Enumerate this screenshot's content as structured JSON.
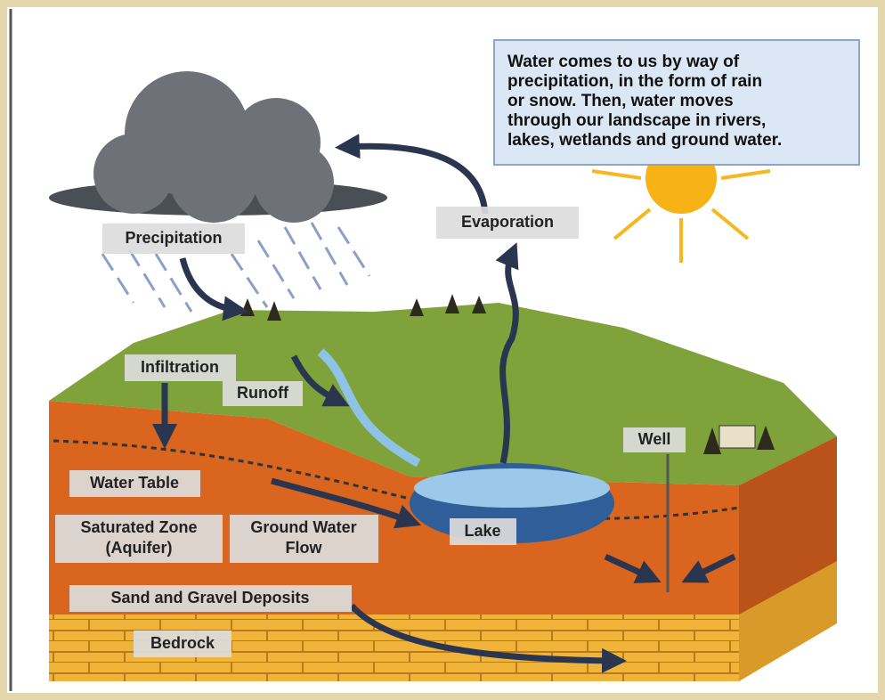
{
  "info_box": {
    "lines": [
      "Water comes to us by way of",
      "precipitation, in the form of rain",
      "or snow. Then, water moves",
      "through our landscape in rivers,",
      "lakes, wetlands and ground water."
    ]
  },
  "labels": {
    "precipitation": "Precipitation",
    "evaporation": "Evaporation",
    "infiltration": "Infiltration",
    "runoff": "Runoff",
    "water_table": "Water Table",
    "saturated_zone": [
      "Saturated Zone",
      "(Aquifer)"
    ],
    "ground_water_flow": [
      "Ground Water",
      "Flow"
    ],
    "lake": "Lake",
    "well": "Well",
    "sand_gravel": "Sand and Gravel Deposits",
    "bedrock": "Bedrock"
  }
}
